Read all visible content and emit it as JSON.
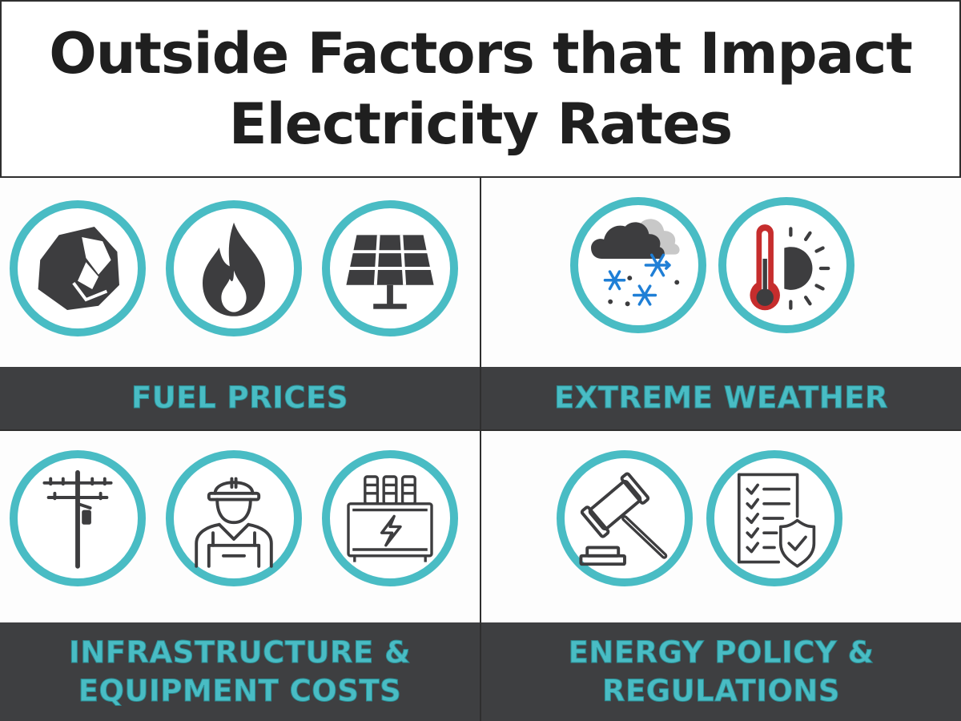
{
  "title": {
    "line1": "Outside Factors that Impact",
    "line2": "Electricity Rates"
  },
  "sections": {
    "fuel": {
      "label": "FUEL PRICES"
    },
    "weather": {
      "label": "EXTREME WEATHER"
    },
    "infrastructure": {
      "line1": "INFRASTRUCTURE &",
      "line2": "EQUIPMENT COSTS"
    },
    "policy": {
      "line1": "ENERGY POLICY &",
      "line2": "REGULATIONS"
    }
  },
  "icons": {
    "fuel": [
      "coal-icon",
      "flame-icon",
      "solar-panel-icon"
    ],
    "weather": [
      "snow-cloud-icon",
      "thermometer-sun-icon"
    ],
    "infrastructure": [
      "utility-pole-icon",
      "worker-icon",
      "transformer-icon"
    ],
    "policy": [
      "gavel-icon",
      "checklist-shield-icon"
    ]
  },
  "colors": {
    "accent": "#49bcc4",
    "band": "#3e3f41",
    "icon": "#3d3d3f",
    "snowflake": "#1f7fd6",
    "thermometer": "#c62d2d"
  }
}
